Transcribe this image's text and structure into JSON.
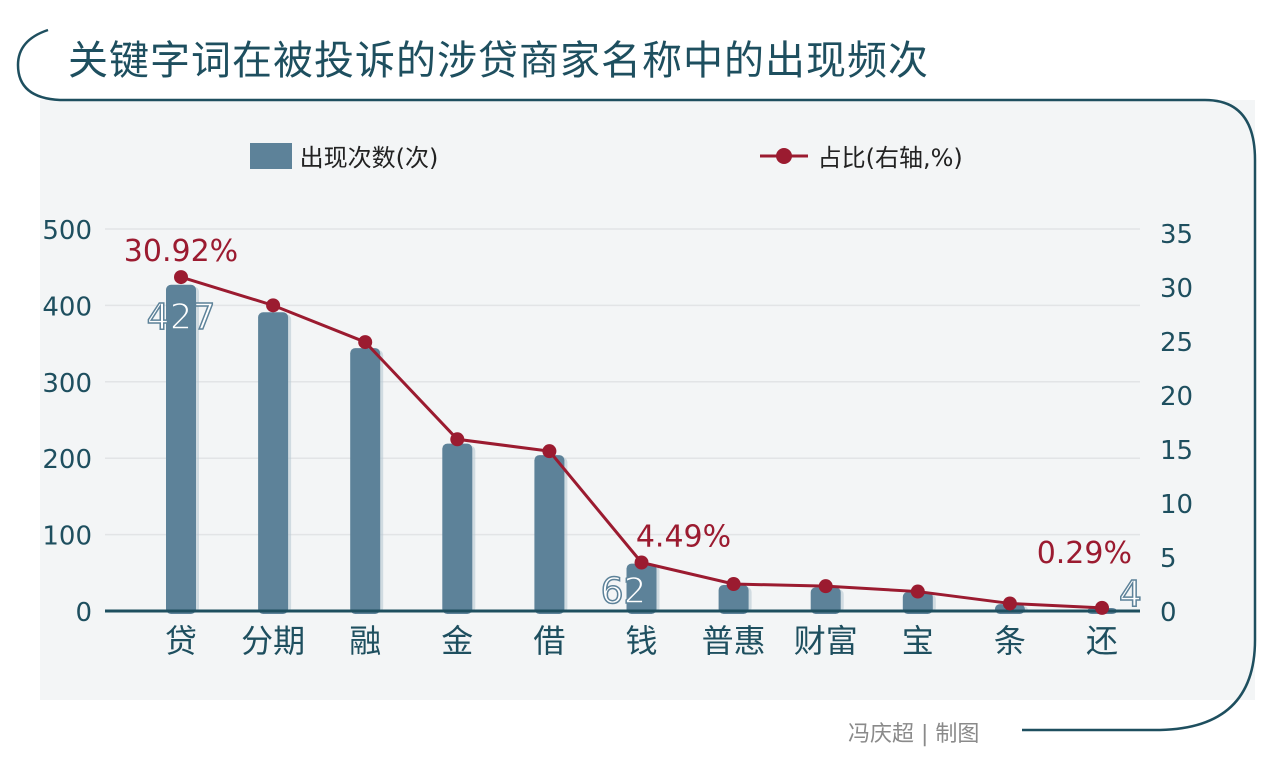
{
  "title": "关键字词在被投诉的涉贷商家名称中的出现频次",
  "footer": "冯庆超 | 制图",
  "colors": {
    "bar": "#5d8299",
    "line": "#9b1b30",
    "frame": "#1e4f5f",
    "panel": "#f3f5f6"
  },
  "chart_data": {
    "type": "bar+line",
    "categories": [
      "贷",
      "分期",
      "融",
      "金",
      "借",
      "钱",
      "普惠",
      "财富",
      "宝",
      "条",
      "还"
    ],
    "series": [
      {
        "name": "出现次数(次)",
        "type": "bar",
        "axis": "left",
        "values": [
          427,
          391,
          344,
          219,
          204,
          62,
          34,
          31,
          25,
          9,
          4
        ]
      },
      {
        "name": "占比(右轴,%)",
        "type": "line",
        "axis": "right",
        "values": [
          30.92,
          28.3,
          24.9,
          15.9,
          14.8,
          4.49,
          2.5,
          2.3,
          1.8,
          0.7,
          0.29
        ]
      }
    ],
    "left_axis": {
      "min": 0,
      "max": 500,
      "ticks": [
        "0",
        "100",
        "200",
        "300",
        "400",
        "500"
      ]
    },
    "right_axis": {
      "min": 0,
      "max": 35,
      "ticks": [
        "0",
        "5",
        "10",
        "15",
        "20",
        "25",
        "30",
        "35"
      ]
    },
    "annotations": [
      {
        "category": "贷",
        "bar_label": "427",
        "line_label": "30.92%"
      },
      {
        "category": "钱",
        "bar_label": "62",
        "line_label": "4.49%"
      },
      {
        "category": "还",
        "bar_label": "4",
        "line_label": "0.29%"
      }
    ],
    "legend": [
      "出现次数(次)",
      "占比(右轴,%)"
    ],
    "legend_position": "top",
    "grid": true
  }
}
